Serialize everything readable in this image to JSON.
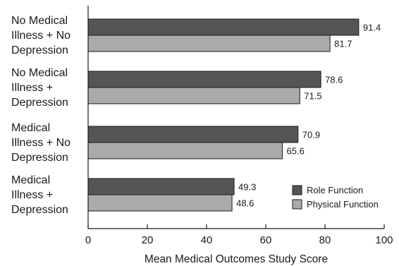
{
  "chart_data": {
    "type": "bar",
    "orientation": "horizontal",
    "categories": [
      [
        "No Medical",
        "Illness + No",
        "Depression"
      ],
      [
        "No Medical",
        "Illness +",
        "Depression"
      ],
      [
        "Medical",
        "Illness + No",
        "Depression"
      ],
      [
        "Medical",
        "Illness +",
        "Depression"
      ]
    ],
    "series": [
      {
        "name": "Role Function",
        "color": "#555555",
        "values": [
          91.4,
          78.6,
          70.9,
          49.3
        ]
      },
      {
        "name": "Physical Function",
        "color": "#aaaaaa",
        "values": [
          81.7,
          71.5,
          65.6,
          48.6
        ]
      }
    ],
    "xlabel": "Mean Medical Outcomes Study Score",
    "xlim": [
      0,
      100
    ],
    "xticks": [
      0,
      20,
      40,
      60,
      80,
      100
    ],
    "grid": false,
    "legend_position": "bottom-right"
  }
}
